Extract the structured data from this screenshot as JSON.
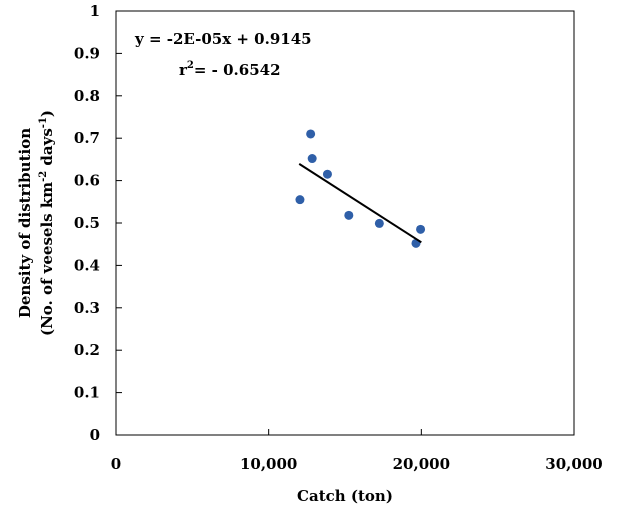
{
  "chart_data": {
    "type": "scatter",
    "xlabel": "Catch (ton)",
    "ylabel_line1": "Density of distribution",
    "ylabel_line2": {
      "part1": "(No. of veesels km",
      "sup1": "-2",
      "part2": " days",
      "sup2": "-1",
      "part3": ")"
    },
    "xlim": [
      0,
      30000
    ],
    "ylim": [
      0,
      1
    ],
    "x_ticks": [
      0,
      10000,
      20000,
      30000
    ],
    "x_tick_labels": [
      "0",
      "10,000",
      "20,000",
      "30,000"
    ],
    "y_ticks": [
      0,
      0.1,
      0.2,
      0.3,
      0.4,
      0.5,
      0.6,
      0.7,
      0.8,
      0.9,
      1
    ],
    "y_tick_labels": [
      "0",
      "0.1",
      "0.2",
      "0.3",
      "0.4",
      "0.5",
      "0.6",
      "0.7",
      "0.8",
      "0.9",
      "1"
    ],
    "points": [
      {
        "x": 12050,
        "y": 0.555
      },
      {
        "x": 12750,
        "y": 0.71
      },
      {
        "x": 12850,
        "y": 0.652
      },
      {
        "x": 13850,
        "y": 0.615
      },
      {
        "x": 15250,
        "y": 0.518
      },
      {
        "x": 17250,
        "y": 0.499
      },
      {
        "x": 19650,
        "y": 0.452
      },
      {
        "x": 19950,
        "y": 0.485
      }
    ],
    "trendline": {
      "x": [
        12000,
        20000
      ],
      "y": [
        0.6395,
        0.4545
      ]
    },
    "equation": "y = -2E-05x + 0.9145",
    "r2": {
      "base": "r",
      "sup": "2",
      "rest": "= - 0.6542"
    },
    "grid": false,
    "legend": "none",
    "marker_color": "#2f5fa8",
    "line_color": "#000000"
  }
}
